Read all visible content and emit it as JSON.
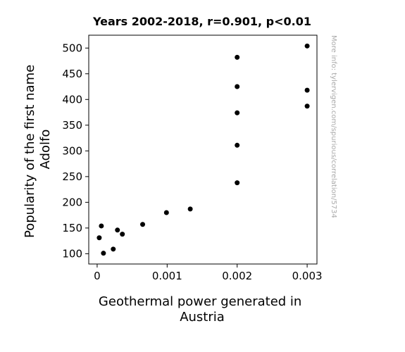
{
  "chart_data": {
    "type": "scatter",
    "title": "Years 2002-2018, r=0.901, p<0.01",
    "xlabel": [
      "Geothermal power generated in",
      "Austria"
    ],
    "ylabel": [
      "Popularity of the first name",
      "Adolfo"
    ],
    "side_note": "More info: tylervigen.com/spurious/correlation/5734",
    "xlim": [
      -0.00012,
      0.00314
    ],
    "ylim": [
      80,
      525
    ],
    "x_ticks": [
      {
        "value": 0,
        "label": "0"
      },
      {
        "value": 0.001,
        "label": "0.001"
      },
      {
        "value": 0.002,
        "label": "0.002"
      },
      {
        "value": 0.003,
        "label": "0.003"
      }
    ],
    "y_ticks": [
      {
        "value": 100,
        "label": "100"
      },
      {
        "value": 150,
        "label": "150"
      },
      {
        "value": 200,
        "label": "200"
      },
      {
        "value": 250,
        "label": "250"
      },
      {
        "value": 300,
        "label": "300"
      },
      {
        "value": 350,
        "label": "350"
      },
      {
        "value": 400,
        "label": "400"
      },
      {
        "value": 450,
        "label": "450"
      },
      {
        "value": 500,
        "label": "500"
      }
    ],
    "grid": false,
    "marker_color": "#000000",
    "points": [
      {
        "x": 3e-05,
        "y": 131
      },
      {
        "x": 6e-05,
        "y": 154
      },
      {
        "x": 9e-05,
        "y": 101
      },
      {
        "x": 0.00023,
        "y": 109
      },
      {
        "x": 0.00029,
        "y": 146
      },
      {
        "x": 0.00036,
        "y": 138
      },
      {
        "x": 0.00065,
        "y": 157
      },
      {
        "x": 0.00099,
        "y": 180
      },
      {
        "x": 0.00133,
        "y": 187
      },
      {
        "x": 0.002,
        "y": 482
      },
      {
        "x": 0.002,
        "y": 425
      },
      {
        "x": 0.002,
        "y": 374
      },
      {
        "x": 0.002,
        "y": 311
      },
      {
        "x": 0.002,
        "y": 238
      },
      {
        "x": 0.003,
        "y": 504
      },
      {
        "x": 0.003,
        "y": 418
      },
      {
        "x": 0.003,
        "y": 387
      }
    ]
  }
}
